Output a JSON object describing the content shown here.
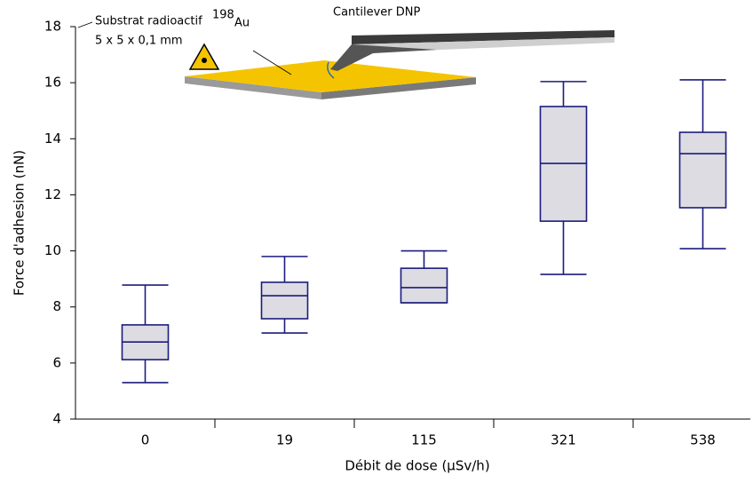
{
  "chart_data": {
    "type": "box",
    "x_label": "Débit de dose (µSv/h)",
    "y_label": "Force d'adhesion (nN)",
    "categories": [
      "0",
      "19",
      "115",
      "321",
      "538"
    ],
    "boxes": [
      {
        "low": 5.3,
        "q1": 6.12,
        "median": 6.75,
        "q3": 7.36,
        "high": 8.78
      },
      {
        "low": 7.07,
        "q1": 7.58,
        "median": 8.4,
        "q3": 8.88,
        "high": 9.8
      },
      {
        "low": 8.15,
        "q1": 8.15,
        "median": 8.69,
        "q3": 9.38,
        "high": 10.0
      },
      {
        "low": 9.16,
        "q1": 11.06,
        "median": 13.12,
        "q3": 15.15,
        "high": 16.04
      },
      {
        "low": 10.08,
        "q1": 11.54,
        "median": 13.47,
        "q3": 14.23,
        "high": 16.1
      }
    ],
    "color": "#1c1c7c",
    "fill": "#dcdce2",
    "ylim": [
      4,
      18
    ],
    "yticks": [
      4,
      6,
      8,
      10,
      12,
      14,
      16,
      18
    ],
    "annotations": [
      "Substrat radioactif",
      "198",
      "Au",
      "5 x 5 x 0,1 mm",
      "Cantilever DNP"
    ]
  }
}
